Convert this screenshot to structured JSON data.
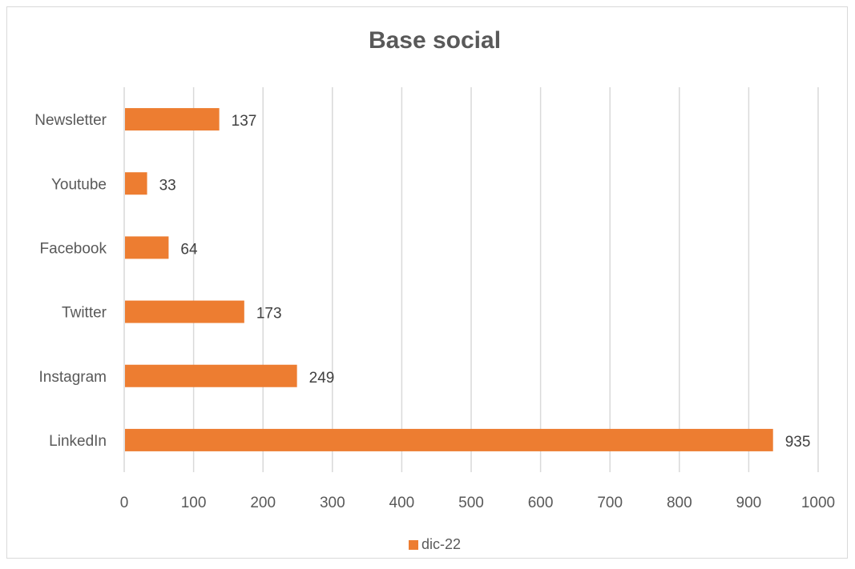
{
  "chart_data": {
    "type": "bar",
    "orientation": "horizontal",
    "title": "Base social",
    "categories": [
      "Newsletter",
      "Youtube",
      "Facebook",
      "Twitter",
      "Instagram",
      "LinkedIn"
    ],
    "series": [
      {
        "name": "dic-22",
        "values": [
          137,
          33,
          64,
          173,
          249,
          935
        ],
        "color": "#ed7d31"
      }
    ],
    "xlim": [
      0,
      1000
    ],
    "xticks": [
      0,
      100,
      200,
      300,
      400,
      500,
      600,
      700,
      800,
      900,
      1000
    ],
    "grid": true,
    "data_labels": true,
    "legend_position": "bottom"
  }
}
